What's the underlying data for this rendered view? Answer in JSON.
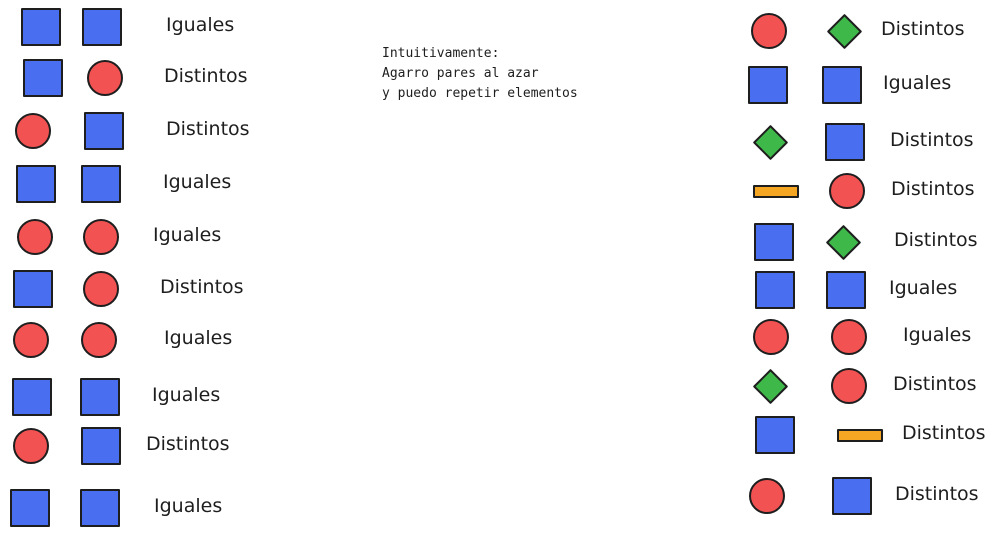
{
  "colors": {
    "square": "#4a6ef0",
    "circle": "#f25252",
    "diamond": "#3fb84a",
    "bar": "#f5a623"
  },
  "note": {
    "lines": [
      "Intuitivamente:",
      "Agarro pares al azar",
      "y puedo repetir elementos"
    ]
  },
  "left_pairs": [
    {
      "a": "square",
      "b": "square",
      "label": "Iguales"
    },
    {
      "a": "square",
      "b": "circle",
      "label": "Distintos"
    },
    {
      "a": "circle",
      "b": "square",
      "label": "Distintos"
    },
    {
      "a": "square",
      "b": "square",
      "label": "Iguales"
    },
    {
      "a": "circle",
      "b": "circle",
      "label": "Iguales"
    },
    {
      "a": "square",
      "b": "circle",
      "label": "Distintos"
    },
    {
      "a": "circle",
      "b": "circle",
      "label": "Iguales"
    },
    {
      "a": "square",
      "b": "square",
      "label": "Iguales"
    },
    {
      "a": "circle",
      "b": "square",
      "label": "Distintos"
    },
    {
      "a": "square",
      "b": "square",
      "label": "Iguales"
    }
  ],
  "right_pairs": [
    {
      "a": "circle",
      "b": "diamond",
      "label": "Distintos"
    },
    {
      "a": "square",
      "b": "square",
      "label": "Iguales"
    },
    {
      "a": "diamond",
      "b": "square",
      "label": "Distintos"
    },
    {
      "a": "bar",
      "b": "circle",
      "label": "Distintos"
    },
    {
      "a": "square",
      "b": "diamond",
      "label": "Distintos"
    },
    {
      "a": "square",
      "b": "square",
      "label": "Iguales"
    },
    {
      "a": "circle",
      "b": "circle",
      "label": "Iguales"
    },
    {
      "a": "diamond",
      "b": "circle",
      "label": "Distintos"
    },
    {
      "a": "square",
      "b": "bar",
      "label": "Distintos"
    },
    {
      "a": "circle",
      "b": "square",
      "label": "Distintos"
    }
  ]
}
